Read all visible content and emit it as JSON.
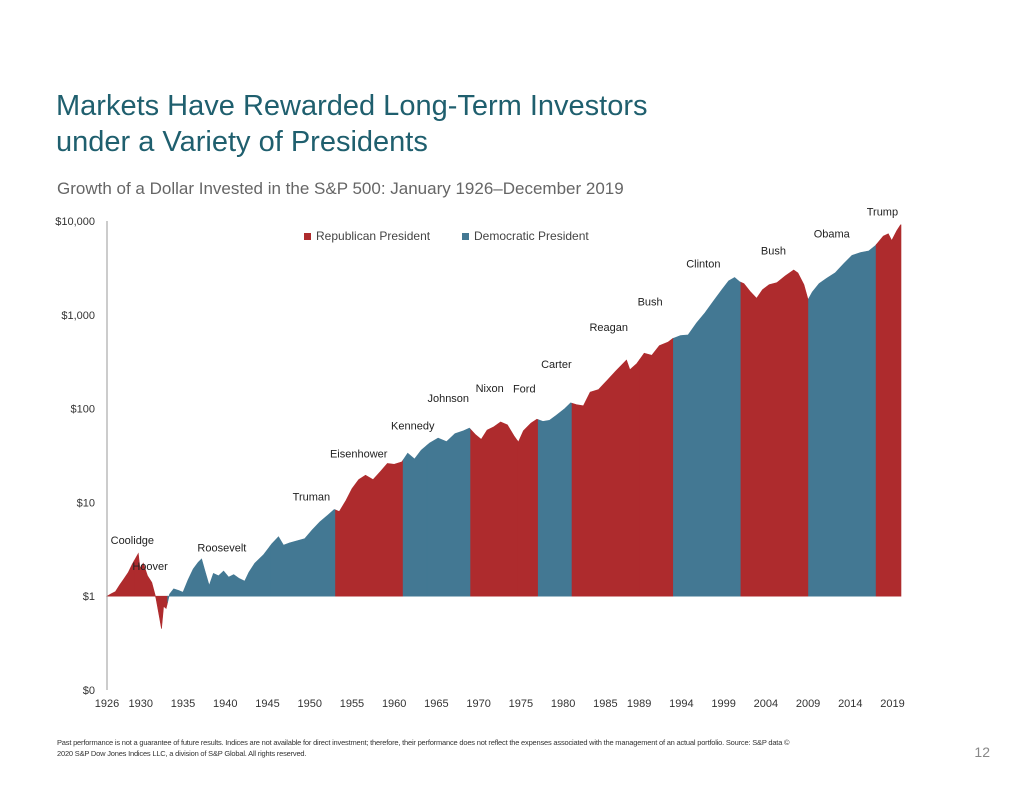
{
  "slide": {
    "title_line1": "Markets Have Rewarded Long-Term Investors",
    "title_line2": "under a Variety of Presidents",
    "subtitle": "Growth of a Dollar Invested in the S&P 500: January 1926–December 2019",
    "footnote_line1": "Past performance is not a guarantee of future results. Indices are not available for direct investment; therefore, their performance does not reflect the expenses associated with the management of an actual portfolio. Source: S&P data ©",
    "footnote_line2": "2020 S&P Dow Jones Indices LLC, a division of S&P Global. All rights reserved.",
    "page_number": "12"
  },
  "colors": {
    "republican": "#ae2b2d",
    "democratic": "#437893",
    "title": "#1f5f6e"
  },
  "chart_data": {
    "type": "area",
    "title": "Growth of a Dollar Invested in the S&P 500: January 1926–December 2019",
    "y_scale": "log",
    "ylim": [
      0.1,
      10000
    ],
    "xlim": [
      1926,
      2020
    ],
    "y_ticks": [
      {
        "value": 10000,
        "label": "$10,000"
      },
      {
        "value": 1000,
        "label": "$1,000"
      },
      {
        "value": 100,
        "label": "$100"
      },
      {
        "value": 10,
        "label": "$10"
      },
      {
        "value": 1,
        "label": "$1"
      },
      {
        "value": 0.1,
        "label": "$0"
      }
    ],
    "x_ticks": [
      "1926",
      "1930",
      "1935",
      "1940",
      "1945",
      "1950",
      "1955",
      "1960",
      "1965",
      "1970",
      "1975",
      "1980",
      "1985",
      "1989",
      "1994",
      "1999",
      "2004",
      "2009",
      "2014",
      "2019"
    ],
    "legend": [
      {
        "name": "Republican President",
        "party": "R"
      },
      {
        "name": "Democratic President",
        "party": "D"
      }
    ],
    "legend_position": "top-center",
    "series": [
      {
        "name": "Growth of a Dollar",
        "points": [
          [
            1926.0,
            1.0
          ],
          [
            1926.5,
            1.06
          ],
          [
            1927.0,
            1.12
          ],
          [
            1927.5,
            1.32
          ],
          [
            1928.0,
            1.53
          ],
          [
            1928.5,
            1.78
          ],
          [
            1929.0,
            2.2
          ],
          [
            1929.4,
            2.55
          ],
          [
            1929.7,
            2.85
          ],
          [
            1929.9,
            2.0
          ],
          [
            1930.3,
            2.25
          ],
          [
            1930.8,
            1.65
          ],
          [
            1931.3,
            1.4
          ],
          [
            1931.8,
            0.95
          ],
          [
            1932.2,
            0.6
          ],
          [
            1932.45,
            0.45
          ],
          [
            1932.7,
            0.78
          ],
          [
            1933.0,
            0.74
          ],
          [
            1933.4,
            1.05
          ],
          [
            1933.9,
            1.2
          ],
          [
            1934.5,
            1.15
          ],
          [
            1935.0,
            1.1
          ],
          [
            1935.6,
            1.5
          ],
          [
            1936.2,
            1.95
          ],
          [
            1936.8,
            2.3
          ],
          [
            1937.2,
            2.5
          ],
          [
            1937.6,
            1.85
          ],
          [
            1938.1,
            1.3
          ],
          [
            1938.6,
            1.75
          ],
          [
            1939.2,
            1.65
          ],
          [
            1939.8,
            1.85
          ],
          [
            1940.4,
            1.6
          ],
          [
            1941.0,
            1.7
          ],
          [
            1941.6,
            1.55
          ],
          [
            1942.3,
            1.45
          ],
          [
            1942.8,
            1.8
          ],
          [
            1943.5,
            2.25
          ],
          [
            1944.5,
            2.75
          ],
          [
            1945.5,
            3.6
          ],
          [
            1946.3,
            4.3
          ],
          [
            1946.9,
            3.5
          ],
          [
            1947.6,
            3.7
          ],
          [
            1948.5,
            3.9
          ],
          [
            1949.4,
            4.1
          ],
          [
            1950.3,
            5.1
          ],
          [
            1951.2,
            6.2
          ],
          [
            1952.2,
            7.4
          ],
          [
            1952.9,
            8.4
          ],
          [
            1953.5,
            8.0
          ],
          [
            1954.3,
            10.5
          ],
          [
            1955.0,
            14.0
          ],
          [
            1955.8,
            17.5
          ],
          [
            1956.6,
            19.5
          ],
          [
            1957.5,
            17.5
          ],
          [
            1958.3,
            21.0
          ],
          [
            1959.2,
            26.0
          ],
          [
            1960.0,
            25.5
          ],
          [
            1960.9,
            27.0
          ],
          [
            1961.6,
            33.5
          ],
          [
            1962.4,
            29.0
          ],
          [
            1963.2,
            36.0
          ],
          [
            1964.2,
            43.0
          ],
          [
            1965.2,
            48.5
          ],
          [
            1966.2,
            44.5
          ],
          [
            1967.2,
            54.0
          ],
          [
            1968.2,
            58.0
          ],
          [
            1968.9,
            62.0
          ],
          [
            1969.6,
            53.0
          ],
          [
            1970.3,
            47.0
          ],
          [
            1971.0,
            59.0
          ],
          [
            1971.8,
            64.0
          ],
          [
            1972.6,
            72.0
          ],
          [
            1973.4,
            67.0
          ],
          [
            1974.2,
            51.0
          ],
          [
            1974.7,
            44.0
          ],
          [
            1975.3,
            58.0
          ],
          [
            1976.2,
            70.0
          ],
          [
            1976.9,
            77.0
          ],
          [
            1977.6,
            73.0
          ],
          [
            1978.4,
            75.0
          ],
          [
            1979.2,
            85.0
          ],
          [
            1980.2,
            100.0
          ],
          [
            1980.9,
            115.0
          ],
          [
            1981.6,
            110.0
          ],
          [
            1982.4,
            107.0
          ],
          [
            1983.2,
            150.0
          ],
          [
            1984.2,
            160.0
          ],
          [
            1985.2,
            200.0
          ],
          [
            1986.2,
            250.0
          ],
          [
            1987.5,
            330.0
          ],
          [
            1987.9,
            260.0
          ],
          [
            1988.7,
            300.0
          ],
          [
            1989.6,
            390.0
          ],
          [
            1990.5,
            370.0
          ],
          [
            1991.4,
            470.0
          ],
          [
            1992.4,
            510.0
          ],
          [
            1993.0,
            560.0
          ],
          [
            1993.9,
            600.0
          ],
          [
            1994.8,
            610.0
          ],
          [
            1995.8,
            820.0
          ],
          [
            1996.8,
            1050.0
          ],
          [
            1997.8,
            1400.0
          ],
          [
            1998.8,
            1850.0
          ],
          [
            1999.6,
            2300.0
          ],
          [
            2000.3,
            2500.0
          ],
          [
            2000.9,
            2250.0
          ],
          [
            2001.4,
            2150.0
          ],
          [
            2002.2,
            1750.0
          ],
          [
            2002.9,
            1500.0
          ],
          [
            2003.6,
            1850.0
          ],
          [
            2004.4,
            2100.0
          ],
          [
            2005.3,
            2200.0
          ],
          [
            2006.3,
            2600.0
          ],
          [
            2007.3,
            3000.0
          ],
          [
            2007.8,
            2800.0
          ],
          [
            2008.5,
            2100.0
          ],
          [
            2009.0,
            1450.0
          ],
          [
            2009.5,
            1750.0
          ],
          [
            2010.3,
            2150.0
          ],
          [
            2011.2,
            2450.0
          ],
          [
            2012.2,
            2800.0
          ],
          [
            2013.2,
            3500.0
          ],
          [
            2014.2,
            4300.0
          ],
          [
            2015.2,
            4600.0
          ],
          [
            2016.2,
            4800.0
          ],
          [
            2017.0,
            5500.0
          ],
          [
            2017.9,
            6900.0
          ],
          [
            2018.5,
            7300.0
          ],
          [
            2018.9,
            6200.0
          ],
          [
            2019.5,
            7900.0
          ],
          [
            2019.95,
            9100.0
          ]
        ]
      }
    ],
    "presidents": [
      {
        "name": "Coolidge",
        "party": "R",
        "start": 1926.0,
        "end": 1929.17
      },
      {
        "name": "Hoover",
        "party": "R",
        "start": 1929.17,
        "end": 1933.17
      },
      {
        "name": "Roosevelt",
        "party": "D",
        "start": 1933.17,
        "end": 1945.28
      },
      {
        "name": "Truman",
        "party": "D",
        "start": 1945.28,
        "end": 1953.05
      },
      {
        "name": "Eisenhower",
        "party": "R",
        "start": 1953.05,
        "end": 1961.05
      },
      {
        "name": "Kennedy",
        "party": "D",
        "start": 1961.05,
        "end": 1963.88
      },
      {
        "name": "Johnson",
        "party": "D",
        "start": 1963.88,
        "end": 1969.05
      },
      {
        "name": "Nixon",
        "party": "R",
        "start": 1969.05,
        "end": 1974.6
      },
      {
        "name": "Ford",
        "party": "R",
        "start": 1974.6,
        "end": 1977.05
      },
      {
        "name": "Carter",
        "party": "D",
        "start": 1977.05,
        "end": 1981.05
      },
      {
        "name": "Reagan",
        "party": "R",
        "start": 1981.05,
        "end": 1989.05
      },
      {
        "name": "Bush",
        "party": "R",
        "start": 1989.05,
        "end": 1993.05
      },
      {
        "name": "Clinton",
        "party": "D",
        "start": 1993.05,
        "end": 2001.05
      },
      {
        "name": "Bush",
        "party": "R",
        "start": 2001.05,
        "end": 2009.05
      },
      {
        "name": "Obama",
        "party": "D",
        "start": 2009.05,
        "end": 2017.05
      },
      {
        "name": "Trump",
        "party": "R",
        "start": 2017.05,
        "end": 2020.0
      }
    ],
    "annotations": [
      {
        "text": "Coolidge",
        "x": 1929.0,
        "y": 3.6
      },
      {
        "text": "Hoover",
        "x": 1931.1,
        "y": 1.9
      },
      {
        "text": "Roosevelt",
        "x": 1939.6,
        "y": 3.0
      },
      {
        "text": "Truman",
        "x": 1950.2,
        "y": 10.5
      },
      {
        "text": "Eisenhower",
        "x": 1955.8,
        "y": 30.0
      },
      {
        "text": "Kennedy",
        "x": 1962.2,
        "y": 60.0
      },
      {
        "text": "Johnson",
        "x": 1966.4,
        "y": 118.0
      },
      {
        "text": "Nixon",
        "x": 1971.3,
        "y": 150.0
      },
      {
        "text": "Ford",
        "x": 1975.4,
        "y": 148.0
      },
      {
        "text": "Carter",
        "x": 1979.2,
        "y": 270.0
      },
      {
        "text": "Reagan",
        "x": 1985.4,
        "y": 670.0
      },
      {
        "text": "Bush",
        "x": 1990.3,
        "y": 1250.0
      },
      {
        "text": "Clinton",
        "x": 1996.6,
        "y": 3200.0
      },
      {
        "text": "Bush",
        "x": 2004.9,
        "y": 4400.0
      },
      {
        "text": "Obama",
        "x": 2011.8,
        "y": 6700.0
      },
      {
        "text": "Trump",
        "x": 2017.8,
        "y": 11500.0
      }
    ]
  }
}
